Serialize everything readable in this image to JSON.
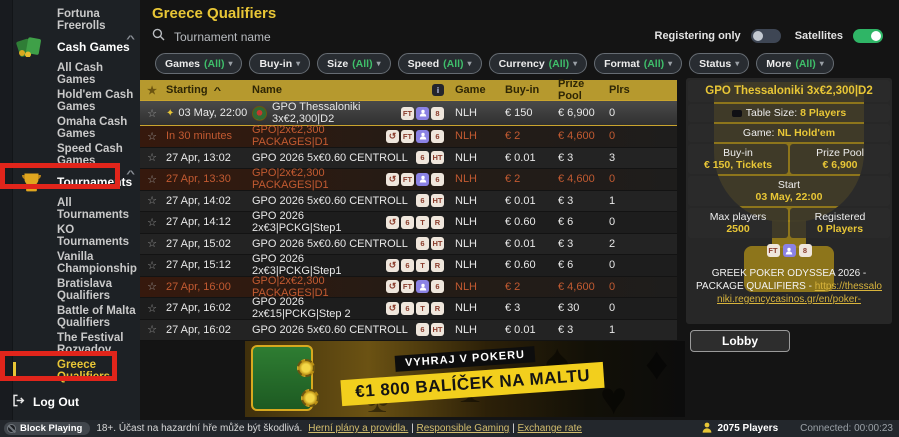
{
  "colors": {
    "accent_yellow": "#e8c636",
    "table_header_gold": "#b6992e",
    "hot_orange": "#c25a31",
    "toggle_green": "#2fb566",
    "filter_value_green": "#3fbf6a",
    "annotation_red": "#e1251b"
  },
  "sidebar": {
    "items": [
      {
        "label": "Fortuna Freerolls",
        "type": "sub"
      },
      {
        "label": "Cash Games",
        "type": "group",
        "icon": "cards"
      },
      {
        "label": "All Cash Games",
        "type": "sub"
      },
      {
        "label": "Hold'em Cash Games",
        "type": "sub"
      },
      {
        "label": "Omaha Cash Games",
        "type": "sub"
      },
      {
        "label": "Speed Cash Games",
        "type": "sub"
      },
      {
        "label": "Tournaments",
        "type": "group",
        "icon": "trophy"
      },
      {
        "label": "All Tournaments",
        "type": "sub"
      },
      {
        "label": "KO Tournaments",
        "type": "sub"
      },
      {
        "label": "Vanilla Championship",
        "type": "sub"
      },
      {
        "label": "Bratislava Qualifiers",
        "type": "sub"
      },
      {
        "label": "Battle of Malta Qualifiers",
        "type": "sub"
      },
      {
        "label": "The Festival Rozvadov",
        "type": "sub"
      },
      {
        "label": "Greece Qualifiers",
        "type": "sub",
        "active": true
      }
    ],
    "logout_label": "Log Out"
  },
  "header": {
    "title": "Greece Qualifiers",
    "search_placeholder": "Tournament name",
    "registering_only_label": "Registering only",
    "registering_only_on": false,
    "satellites_label": "Satellites",
    "satellites_on": true
  },
  "filters": [
    {
      "label": "Games",
      "value": "(All)"
    },
    {
      "label": "Buy-in",
      "value": ""
    },
    {
      "label": "Size",
      "value": "(All)"
    },
    {
      "label": "Speed",
      "value": "(All)"
    },
    {
      "label": "Currency",
      "value": "(All)"
    },
    {
      "label": "Format",
      "value": "(All)"
    },
    {
      "label": "Status",
      "value": ""
    },
    {
      "label": "More",
      "value": "(All)"
    }
  ],
  "table": {
    "columns": {
      "starting": "Starting",
      "name": "Name",
      "game": "Game",
      "buyin": "Buy-in",
      "prize": "Prize Pool",
      "plrs": "Plrs"
    },
    "rows": [
      {
        "starting": "03 May, 22:00",
        "pin": true,
        "logo": true,
        "name": "GPO Thessaloniki 3x€2,300|D2",
        "badges": [
          "FT",
          "seat",
          "8"
        ],
        "game": "NLH",
        "buyin": "€ 150",
        "prize": "€ 6,900",
        "plrs": "0",
        "style": "selected"
      },
      {
        "starting": "In 30 minutes",
        "name": "GPO|2x€2,300 PACKAGES|D1",
        "badges": [
          "re",
          "FT",
          "seat",
          "6"
        ],
        "game": "NLH",
        "buyin": "€ 2",
        "prize": "€ 4,600",
        "plrs": "0",
        "style": "hot"
      },
      {
        "starting": "27 Apr, 13:02",
        "name": "GPO 2026 5x€0.60 CENTROLL",
        "badges": [
          "6",
          "HT"
        ],
        "game": "NLH",
        "buyin": "€ 0.01",
        "prize": "€ 3",
        "plrs": "3"
      },
      {
        "starting": "27 Apr, 13:30",
        "name": "GPO|2x€2,300 PACKAGES|D1",
        "badges": [
          "re",
          "FT",
          "seat",
          "6"
        ],
        "game": "NLH",
        "buyin": "€ 2",
        "prize": "€ 4,600",
        "plrs": "0",
        "style": "hot"
      },
      {
        "starting": "27 Apr, 14:02",
        "name": "GPO 2026 5x€0.60 CENTROLL",
        "badges": [
          "6",
          "HT"
        ],
        "game": "NLH",
        "buyin": "€ 0.01",
        "prize": "€ 3",
        "plrs": "1"
      },
      {
        "starting": "27 Apr, 14:12",
        "name": "GPO 2026 2x€3|PCKG|Step1",
        "badges": [
          "re",
          "6",
          "T",
          "R"
        ],
        "game": "NLH",
        "buyin": "€ 0.60",
        "prize": "€ 6",
        "plrs": "0"
      },
      {
        "starting": "27 Apr, 15:02",
        "name": "GPO 2026 5x€0.60 CENTROLL",
        "badges": [
          "6",
          "HT"
        ],
        "game": "NLH",
        "buyin": "€ 0.01",
        "prize": "€ 3",
        "plrs": "2"
      },
      {
        "starting": "27 Apr, 15:12",
        "name": "GPO 2026 2x€3|PCKG|Step1",
        "badges": [
          "re",
          "6",
          "T",
          "R"
        ],
        "game": "NLH",
        "buyin": "€ 0.60",
        "prize": "€ 6",
        "plrs": "0"
      },
      {
        "starting": "27 Apr, 16:00",
        "name": "GPO|2x€2,300 PACKAGES|D1",
        "badges": [
          "re",
          "FT",
          "seat",
          "6"
        ],
        "game": "NLH",
        "buyin": "€ 2",
        "prize": "€ 4,600",
        "plrs": "0",
        "style": "hot"
      },
      {
        "starting": "27 Apr, 16:02",
        "name": "GPO 2026 2x€15|PCKG|Step 2",
        "badges": [
          "re",
          "6",
          "T",
          "R"
        ],
        "game": "NLH",
        "buyin": "€ 3",
        "prize": "€ 30",
        "plrs": "0"
      },
      {
        "starting": "27 Apr, 16:02",
        "name": "GPO 2026 5x€0.60 CENTROLL",
        "badges": [
          "6",
          "HT"
        ],
        "game": "NLH",
        "buyin": "€ 0.01",
        "prize": "€ 3",
        "plrs": "1"
      }
    ]
  },
  "panel": {
    "title": "GPO Thessaloniki 3x€2,300|D2",
    "table_size_label": "Table Size:",
    "table_size_value": "8 Players",
    "game_label": "Game:",
    "game_value": "NL Hold'em",
    "buyin_label": "Buy-in",
    "buyin_value": "€ 150, Tickets",
    "prize_label": "Prize Pool",
    "prize_value": "€ 6,900",
    "start_label": "Start",
    "start_value": "03 May, 22:00",
    "max_label": "Max players",
    "max_value": "2500",
    "reg_label": "Registered",
    "reg_value": "0 Players",
    "badges": [
      "FT",
      "seat",
      "8"
    ],
    "description": "GREEK POKER ODYSSEA 2026 - PACKAGE QUALIFIERS - ",
    "link": "https://thessaloniki.regencycasinos.gr/en/poker-",
    "lobby_label": "Lobby"
  },
  "banner": {
    "line1": "VYHRAJ V POKERU",
    "line2": "€1 800 BALÍČEK NA MALTU"
  },
  "statusbar": {
    "block_playing": "Block Playing",
    "disclaimer": "18+. Účast na hazardní hře může být škodlivá.",
    "links": [
      "Herní plány a providla.",
      "Responsible Gaming",
      "Exchange rate"
    ],
    "players": "2075 Players",
    "connected": "Connected: 00:00:23"
  }
}
